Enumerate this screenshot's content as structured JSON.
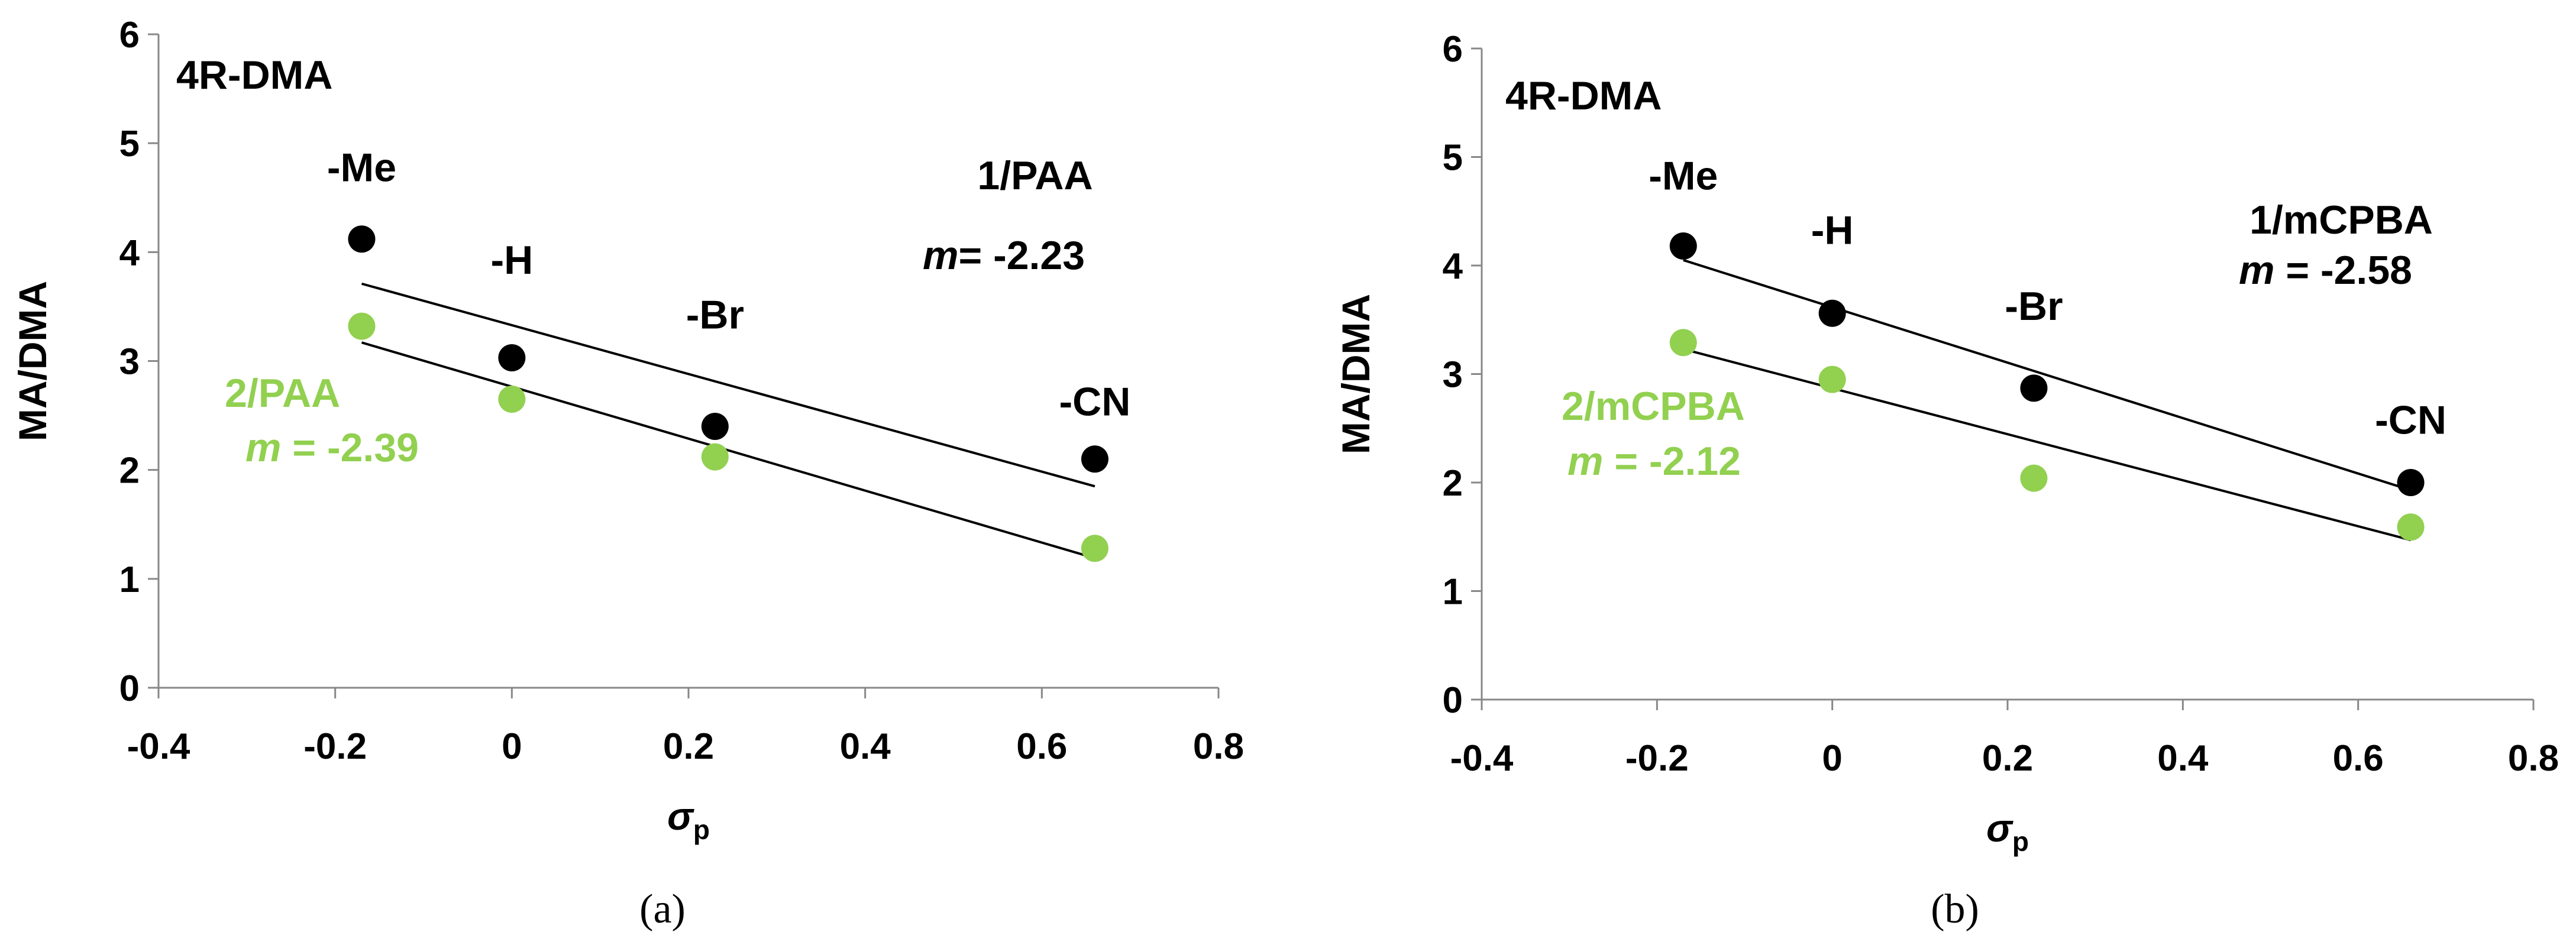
{
  "chart_data": [
    {
      "type": "scatter",
      "panel_label": "(a)",
      "xlabel": "σ",
      "xlabel_sub": "p",
      "ylabel": "MA/DMA",
      "xlim": [
        -0.4,
        0.8
      ],
      "ylim": [
        0,
        6
      ],
      "xticks": [
        "-0.4",
        "-0.2",
        "0",
        "0.2",
        "0.4",
        "0.6",
        "0.8"
      ],
      "yticks": [
        "0",
        "1",
        "2",
        "3",
        "4",
        "5",
        "6"
      ],
      "grid": false,
      "inner_label": "4R-DMA",
      "substituents": [
        {
          "text": "-Me",
          "x": -0.17,
          "y": 4.65
        },
        {
          "text": "-H",
          "x": 0.0,
          "y": 3.8
        },
        {
          "text": "-Br",
          "x": 0.23,
          "y": 3.3
        },
        {
          "text": "-CN",
          "x": 0.66,
          "y": 2.5
        }
      ],
      "series": [
        {
          "name": "1/PAA",
          "slope_label": "m",
          "slope_value": "= -2.23",
          "color": "#000000",
          "x": [
            -0.17,
            0.0,
            0.23,
            0.66
          ],
          "y": [
            4.12,
            3.03,
            2.4,
            2.1
          ],
          "fit": [
            [
              -0.17,
              3.71
            ],
            [
              0.66,
              1.85
            ]
          ]
        },
        {
          "name": "2/PAA",
          "slope_label": "m",
          "slope_value": " = -2.39",
          "color": "#92D050",
          "x": [
            -0.17,
            0.0,
            0.23,
            0.66
          ],
          "y": [
            3.32,
            2.65,
            2.12,
            1.28
          ],
          "fit": [
            [
              -0.17,
              3.17
            ],
            [
              0.66,
              1.19
            ]
          ]
        }
      ]
    },
    {
      "type": "scatter",
      "panel_label": "(b)",
      "xlabel": "σ",
      "xlabel_sub": "p",
      "ylabel": "MA/DMA",
      "xlim": [
        -0.4,
        0.8
      ],
      "ylim": [
        0,
        6
      ],
      "xticks": [
        "-0.4",
        "-0.2",
        "0",
        "0.2",
        "0.4",
        "0.6",
        "0.8"
      ],
      "yticks": [
        "0",
        "1",
        "2",
        "3",
        "4",
        "5",
        "6"
      ],
      "grid": false,
      "inner_label": "4R-DMA",
      "substituents": [
        {
          "text": "-Me",
          "x": -0.17,
          "y": 4.7
        },
        {
          "text": "-H",
          "x": 0.0,
          "y": 4.2
        },
        {
          "text": "-Br",
          "x": 0.23,
          "y": 3.5
        },
        {
          "text": "-CN",
          "x": 0.66,
          "y": 2.45
        }
      ],
      "series": [
        {
          "name": "1/mCPBA",
          "slope_label": "m",
          "slope_value": " = -2.58",
          "color": "#000000",
          "x": [
            -0.17,
            0.0,
            0.23,
            0.66
          ],
          "y": [
            4.18,
            3.56,
            2.87,
            2.0
          ],
          "fit": [
            [
              -0.17,
              4.05
            ],
            [
              0.66,
              1.93
            ]
          ]
        },
        {
          "name": "2/mCPBA",
          "slope_label": "m",
          "slope_value": " = -2.12",
          "color": "#92D050",
          "x": [
            -0.17,
            0.0,
            0.23,
            0.66
          ],
          "y": [
            3.29,
            2.95,
            2.04,
            1.59
          ],
          "fit": [
            [
              -0.17,
              3.23
            ],
            [
              0.66,
              1.47
            ]
          ]
        }
      ]
    }
  ]
}
